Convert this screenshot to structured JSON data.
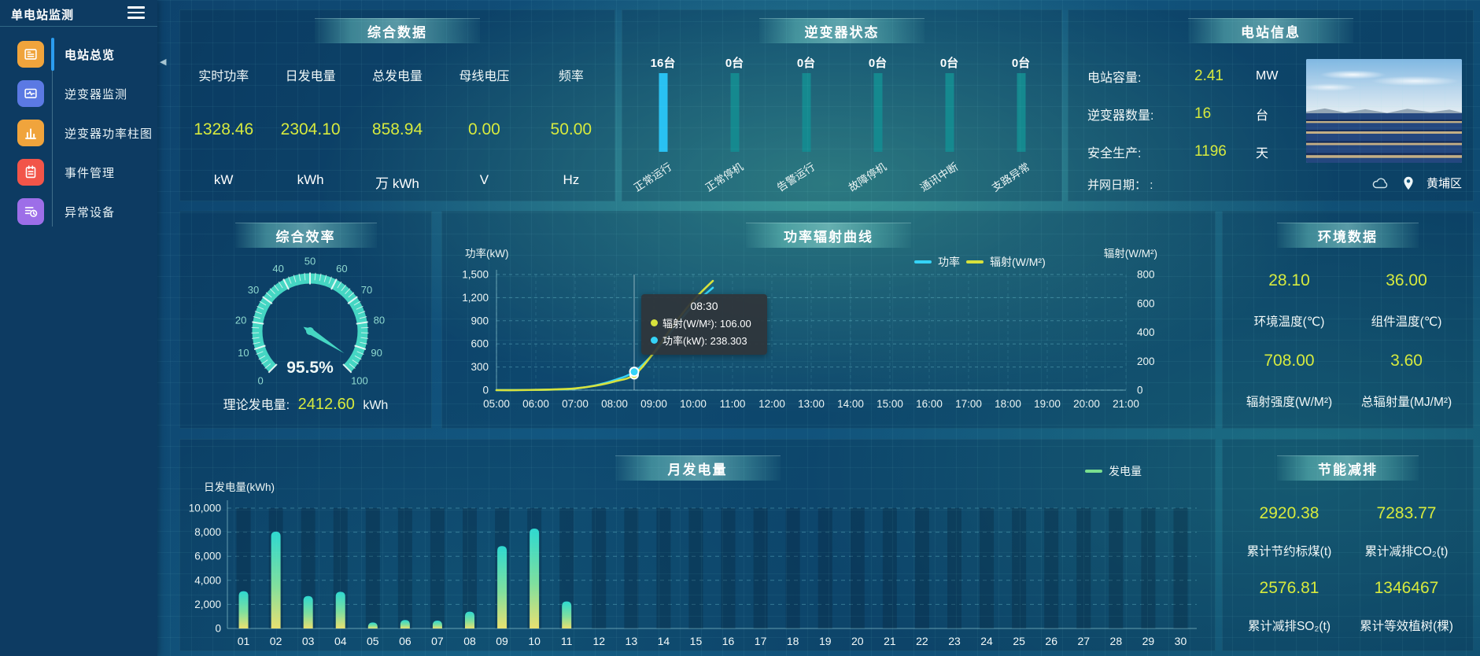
{
  "app": {
    "title": "单电站监测"
  },
  "sidebar": {
    "items": [
      {
        "label": "电站总览",
        "icon": "overview-icon",
        "color": "#f0a43c",
        "active": true
      },
      {
        "label": "逆变器监测",
        "icon": "inverter-monitor-icon",
        "color": "#5b79e3",
        "active": false
      },
      {
        "label": "逆变器功率柱图",
        "icon": "power-bars-icon",
        "color": "#f0a43c",
        "active": false
      },
      {
        "label": "事件管理",
        "icon": "event-icon",
        "color": "#f25549",
        "active": false
      },
      {
        "label": "异常设备",
        "icon": "abnormal-device-icon",
        "color": "#9d6ee8",
        "active": false
      }
    ]
  },
  "panels": {
    "summary": {
      "title": "综合数据",
      "metrics": [
        {
          "label": "实时功率",
          "value": "1328.46",
          "unit": "kW"
        },
        {
          "label": "日发电量",
          "value": "2304.10",
          "unit": "kWh"
        },
        {
          "label": "总发电量",
          "value": "858.94",
          "unit": "万 kWh"
        },
        {
          "label": "母线电压",
          "value": "0.00",
          "unit": "V"
        },
        {
          "label": "频率",
          "value": "50.00",
          "unit": "Hz"
        }
      ]
    },
    "inverter_status": {
      "title": "逆变器状态",
      "items": [
        {
          "count": "16台",
          "label": "正常运行",
          "active": true
        },
        {
          "count": "0台",
          "label": "正常停机",
          "active": false
        },
        {
          "count": "0台",
          "label": "告警运行",
          "active": false
        },
        {
          "count": "0台",
          "label": "故障停机",
          "active": false
        },
        {
          "count": "0台",
          "label": "通讯中断",
          "active": false
        },
        {
          "count": "0台",
          "label": "支路异常",
          "active": false
        }
      ]
    },
    "station_info": {
      "title": "电站信息",
      "rows": [
        {
          "label": "电站容量:",
          "value": "2.41",
          "unit": "MW"
        },
        {
          "label": "逆变器数量:",
          "value": "16",
          "unit": "台"
        },
        {
          "label": "安全生产:",
          "value": "1196",
          "unit": "天"
        }
      ],
      "grid_date_label": "并网日期：",
      "grid_date_value": ":",
      "location": "黄埔区"
    },
    "efficiency": {
      "title": "综合效率",
      "gauge_label": "95.5%",
      "theory_label": "理论发电量:",
      "theory_value": "2412.60",
      "theory_unit": "kWh"
    },
    "curve": {
      "title": "功率辐射曲线"
    },
    "environment": {
      "title": "环境数据",
      "stats": [
        {
          "value": "28.10",
          "label": "环境温度(℃)"
        },
        {
          "value": "36.00",
          "label": "组件温度(℃)"
        },
        {
          "value": "708.00",
          "label": "辐射强度(W/M²)"
        },
        {
          "value": "3.60",
          "label": "总辐射量(MJ/M²)"
        }
      ]
    },
    "monthly": {
      "title": "月发电量"
    },
    "savings": {
      "title": "节能减排",
      "stats": [
        {
          "value": "2920.38",
          "label": "累计节约标煤(t)"
        },
        {
          "value": "7283.77",
          "label": "累计减排CO₂(t)"
        },
        {
          "value": "2576.81",
          "label": "累计减排SO₂(t)"
        },
        {
          "value": "1346467",
          "label": "累计等效植树(棵)"
        }
      ]
    }
  },
  "chart_data": [
    {
      "type": "gauge",
      "title": "综合效率",
      "value": 95.5,
      "min": 0,
      "max": 100,
      "tick_labels": [
        "0",
        "10",
        "20",
        "30",
        "40",
        "50",
        "60",
        "70",
        "80",
        "90",
        "100"
      ],
      "display": "95.5%"
    },
    {
      "type": "line",
      "title": "功率辐射曲线",
      "xlabel_ticks": [
        "05:00",
        "06:00",
        "07:00",
        "08:00",
        "09:00",
        "10:00",
        "11:00",
        "12:00",
        "13:00",
        "14:00",
        "15:00",
        "16:00",
        "17:00",
        "18:00",
        "19:00",
        "20:00",
        "21:00"
      ],
      "x": [
        "05:00",
        "05:30",
        "06:00",
        "06:30",
        "07:00",
        "07:30",
        "08:00",
        "08:30",
        "09:00",
        "09:30",
        "10:00",
        "10:30"
      ],
      "series": [
        {
          "name": "功率",
          "axis": "left",
          "color": "#35d3f7",
          "values": [
            0,
            1,
            3,
            8,
            20,
            60,
            130,
            238.303,
            480,
            800,
            1100,
            1328.46
          ]
        },
        {
          "name": "辐射(W/M²)",
          "axis": "right",
          "color": "#d8e23c",
          "values": [
            0,
            0,
            2,
            5,
            12,
            30,
            60,
            106,
            260,
            450,
            620,
            756
          ]
        }
      ],
      "y_left": {
        "label": "功率(kW)",
        "min": 0,
        "max": 1500,
        "tick_labels": [
          "0",
          "300",
          "600",
          "900",
          "1,200",
          "1,500"
        ]
      },
      "y_right": {
        "label": "辐射(W/M²)",
        "min": 0,
        "max": 800,
        "tick_labels": [
          "0",
          "200",
          "400",
          "600",
          "800"
        ]
      },
      "legend": [
        {
          "label": "功率",
          "color": "#35d3f7"
        },
        {
          "label": "辐射(W/M²)",
          "color": "#d8e23c"
        }
      ],
      "tooltip": {
        "time": "08:30",
        "items": [
          {
            "name": "辐射(W/M²)",
            "value": "106.00",
            "color": "#d8e23c"
          },
          {
            "name": "功率(kW)",
            "value": "238.303",
            "color": "#35d3f7"
          }
        ],
        "x_index": 7
      },
      "grid": true,
      "legend_position": "top"
    },
    {
      "type": "bar",
      "title": "月发电量",
      "ylabel": "日发电量(kWh)",
      "legend": "发电量",
      "legend_color": "#7adf8f",
      "categories": [
        "01",
        "02",
        "03",
        "04",
        "05",
        "06",
        "07",
        "08",
        "09",
        "10",
        "11",
        "12",
        "13",
        "14",
        "15",
        "16",
        "17",
        "18",
        "19",
        "20",
        "21",
        "22",
        "23",
        "24",
        "25",
        "26",
        "27",
        "28",
        "29",
        "30"
      ],
      "values": [
        3100,
        8050,
        2700,
        3050,
        500,
        700,
        650,
        1400,
        6850,
        8300,
        2250,
        0,
        0,
        0,
        0,
        0,
        0,
        0,
        0,
        0,
        0,
        0,
        0,
        0,
        0,
        0,
        0,
        0,
        0,
        0
      ],
      "ylim": [
        0,
        10000
      ],
      "ytick_labels": [
        "0",
        "2,000",
        "4,000",
        "6,000",
        "8,000",
        "10,000"
      ],
      "bar_gradient_top": "#2ed8d0",
      "bar_gradient_bottom": "#e9e170",
      "grid": true
    },
    {
      "type": "bar",
      "title": "逆变器状态",
      "categories": [
        "正常运行",
        "正常停机",
        "告警运行",
        "故障停机",
        "通讯中断",
        "支路异常"
      ],
      "values": [
        16,
        0,
        0,
        0,
        0,
        0
      ],
      "unit": "台",
      "active_color": "#29c1f2",
      "idle_color": "#15898f"
    }
  ],
  "colors": {
    "accent_yellow": "#d7ea3d",
    "power_cyan": "#35d3f7",
    "radiation_yellow": "#d8e23c",
    "gauge_teal": "#45d6c3",
    "active_blue": "#29c1f2"
  }
}
